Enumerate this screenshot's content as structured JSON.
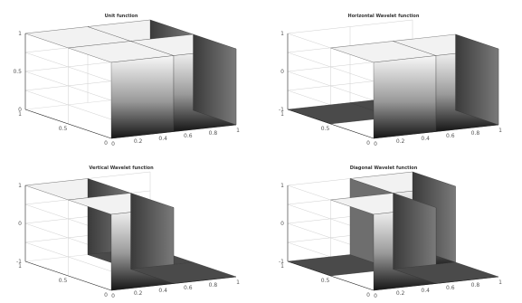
{
  "chart_data": [
    {
      "type": "surface",
      "title": "Unit function",
      "x_ticks": [
        "0",
        "0.2",
        "0.4",
        "0.6",
        "0.8",
        "1"
      ],
      "y_ticks": [
        "0",
        "0.5",
        "1"
      ],
      "z_ticks": [
        "0",
        "0.5",
        "1"
      ],
      "xlim": [
        0,
        1
      ],
      "ylim": [
        0,
        1
      ],
      "zlim": [
        0,
        1
      ],
      "grid": true,
      "surface": [
        [
          1,
          1
        ],
        [
          1,
          1
        ]
      ]
    },
    {
      "type": "surface",
      "title": "Horizontal Wavelet function",
      "x_ticks": [
        "0",
        "0.2",
        "0.4",
        "0.6",
        "0.8",
        "1"
      ],
      "y_ticks": [
        "0",
        "0.5",
        "1"
      ],
      "z_ticks": [
        "-1",
        "0",
        "1"
      ],
      "xlim": [
        0,
        1
      ],
      "ylim": [
        0,
        1
      ],
      "zlim": [
        -1,
        1
      ],
      "grid": true,
      "surface": [
        [
          1,
          1
        ],
        [
          -1,
          -1
        ]
      ]
    },
    {
      "type": "surface",
      "title": "Vertical Wavelet function",
      "x_ticks": [
        "0",
        "0.2",
        "0.4",
        "0.6",
        "0.8",
        "1"
      ],
      "y_ticks": [
        "0",
        "0.5",
        "1"
      ],
      "z_ticks": [
        "-1",
        "0",
        "1"
      ],
      "xlim": [
        0,
        1
      ],
      "ylim": [
        0,
        1
      ],
      "zlim": [
        -1,
        1
      ],
      "grid": true,
      "surface": [
        [
          1,
          -1
        ],
        [
          1,
          -1
        ]
      ]
    },
    {
      "type": "surface",
      "title": "Diagonal Wavelet function",
      "x_ticks": [
        "0",
        "0.2",
        "0.4",
        "0.6",
        "0.8",
        "1"
      ],
      "y_ticks": [
        "0",
        "0.5",
        "1"
      ],
      "z_ticks": [
        "-1",
        "0",
        "1"
      ],
      "xlim": [
        0,
        1
      ],
      "ylim": [
        0,
        1
      ],
      "zlim": [
        -1,
        1
      ],
      "grid": true,
      "surface": [
        [
          1,
          -1
        ],
        [
          -1,
          1
        ]
      ]
    }
  ]
}
